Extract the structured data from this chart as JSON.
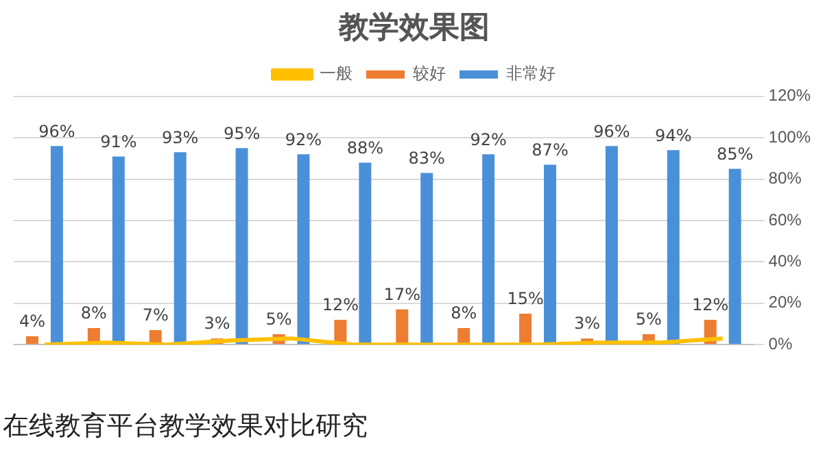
{
  "chart_data": {
    "type": "bar",
    "title": "教学效果图",
    "categories": [
      null,
      null,
      null,
      null,
      null,
      null,
      null,
      null,
      null,
      null,
      null,
      null
    ],
    "series": [
      {
        "name": "一般",
        "type": "line",
        "color": "#ffc000",
        "values": [
          0,
          1,
          0,
          2,
          3,
          0,
          0,
          0,
          0,
          1,
          1,
          3
        ]
      },
      {
        "name": "较好",
        "color": "#ed7d31",
        "values": [
          4,
          8,
          7,
          3,
          5,
          12,
          17,
          8,
          15,
          3,
          5,
          12
        ],
        "value_labels": [
          "4%",
          "8%",
          "7%",
          "3%",
          "5%",
          "12%",
          "17%",
          "8%",
          "15%",
          "3%",
          "5%",
          "12%"
        ]
      },
      {
        "name": "非常好",
        "color": "#4a90d9",
        "values": [
          96,
          91,
          93,
          95,
          92,
          88,
          83,
          92,
          87,
          96,
          94,
          85
        ],
        "value_labels": [
          "96%",
          "91%",
          "93%",
          "95%",
          "92%",
          "88%",
          "83%",
          "92%",
          "87%",
          "96%",
          "94%",
          "85%"
        ]
      }
    ],
    "ylim": [
      0,
      120
    ],
    "yticks": [
      {
        "value": 0,
        "label": "0%"
      },
      {
        "value": 20,
        "label": "20%"
      },
      {
        "value": 40,
        "label": "40%"
      },
      {
        "value": 60,
        "label": "60%"
      },
      {
        "value": 80,
        "label": "80%"
      },
      {
        "value": 100,
        "label": "100%"
      },
      {
        "value": 120,
        "label": "120%"
      }
    ],
    "grid": "y",
    "legend": "top",
    "marker": "none",
    "annotations": [
      "在线教育平台教学效果对比研究"
    ]
  }
}
